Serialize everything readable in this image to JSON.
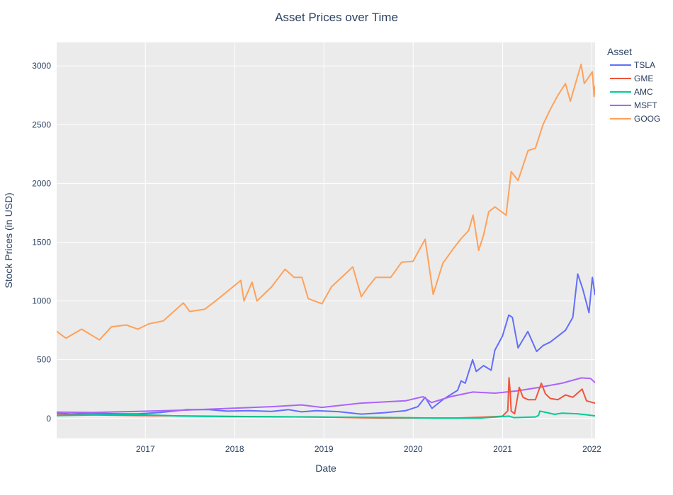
{
  "chart_data": {
    "type": "line",
    "title": "Asset Prices over Time",
    "xlabel": "Date",
    "ylabel": "Stock Prices (in USD)",
    "legend_title": "Asset",
    "legend_position": "right",
    "grid": true,
    "x_tick_labels": [
      "2017",
      "2018",
      "2019",
      "2020",
      "2021",
      "2022"
    ],
    "y_tick_labels": [
      "0",
      "500",
      "1000",
      "1500",
      "2000",
      "2500",
      "3000"
    ],
    "xlim": [
      "2016-01-04",
      "2022-01-14"
    ],
    "ylim": [
      -170,
      3200
    ],
    "colors": {
      "TSLA": "#636efa",
      "GME": "#ef553b",
      "AMC": "#00cc96",
      "MSFT": "#ab63fa",
      "GOOG": "#ffa15a",
      "plot_bg": "#ebebeb",
      "grid": "#ffffff"
    },
    "series": [
      {
        "name": "TSLA",
        "points": [
          [
            "2016-01-04",
            45
          ],
          [
            "2016-03-01",
            38
          ],
          [
            "2016-06-01",
            44
          ],
          [
            "2016-09-01",
            40
          ],
          [
            "2016-12-01",
            39
          ],
          [
            "2017-03-01",
            50
          ],
          [
            "2017-06-20",
            75
          ],
          [
            "2017-09-15",
            76
          ],
          [
            "2017-12-01",
            62
          ],
          [
            "2018-03-01",
            66
          ],
          [
            "2018-06-01",
            60
          ],
          [
            "2018-08-10",
            75
          ],
          [
            "2018-10-01",
            56
          ],
          [
            "2018-12-01",
            66
          ],
          [
            "2019-03-01",
            58
          ],
          [
            "2019-06-03",
            37
          ],
          [
            "2019-09-01",
            48
          ],
          [
            "2019-12-01",
            66
          ],
          [
            "2020-01-20",
            100
          ],
          [
            "2020-02-19",
            180
          ],
          [
            "2020-03-18",
            86
          ],
          [
            "2020-05-01",
            160
          ],
          [
            "2020-07-01",
            240
          ],
          [
            "2020-07-15",
            320
          ],
          [
            "2020-08-01",
            300
          ],
          [
            "2020-08-31",
            500
          ],
          [
            "2020-09-15",
            400
          ],
          [
            "2020-10-15",
            450
          ],
          [
            "2020-11-15",
            410
          ],
          [
            "2020-11-30",
            580
          ],
          [
            "2020-12-31",
            700
          ],
          [
            "2021-01-26",
            880
          ],
          [
            "2021-02-10",
            860
          ],
          [
            "2021-03-05",
            600
          ],
          [
            "2021-04-14",
            740
          ],
          [
            "2021-05-20",
            570
          ],
          [
            "2021-06-15",
            620
          ],
          [
            "2021-07-15",
            650
          ],
          [
            "2021-08-15",
            700
          ],
          [
            "2021-09-15",
            750
          ],
          [
            "2021-10-15",
            860
          ],
          [
            "2021-11-04",
            1230
          ],
          [
            "2021-11-25",
            1100
          ],
          [
            "2021-12-20",
            900
          ],
          [
            "2022-01-03",
            1200
          ],
          [
            "2022-01-14",
            1050
          ]
        ]
      },
      {
        "name": "GME",
        "points": [
          [
            "2016-01-04",
            29
          ],
          [
            "2016-06-01",
            30
          ],
          [
            "2016-12-01",
            25
          ],
          [
            "2017-06-01",
            22
          ],
          [
            "2017-12-01",
            18
          ],
          [
            "2018-06-01",
            14
          ],
          [
            "2018-12-01",
            13
          ],
          [
            "2019-06-01",
            6
          ],
          [
            "2019-09-01",
            4
          ],
          [
            "2020-04-01",
            4
          ],
          [
            "2020-07-01",
            4
          ],
          [
            "2020-10-01",
            10
          ],
          [
            "2020-12-31",
            19
          ],
          [
            "2021-01-22",
            65
          ],
          [
            "2021-01-27",
            347
          ],
          [
            "2021-02-01",
            225
          ],
          [
            "2021-02-05",
            63
          ],
          [
            "2021-02-19",
            40
          ],
          [
            "2021-02-25",
            110
          ],
          [
            "2021-03-10",
            265
          ],
          [
            "2021-03-25",
            180
          ],
          [
            "2021-04-15",
            160
          ],
          [
            "2021-05-15",
            160
          ],
          [
            "2021-06-08",
            300
          ],
          [
            "2021-06-25",
            210
          ],
          [
            "2021-07-15",
            170
          ],
          [
            "2021-08-15",
            160
          ],
          [
            "2021-09-15",
            200
          ],
          [
            "2021-10-15",
            180
          ],
          [
            "2021-11-22",
            250
          ],
          [
            "2021-12-10",
            150
          ],
          [
            "2022-01-14",
            130
          ]
        ]
      },
      {
        "name": "AMC",
        "points": [
          [
            "2016-01-04",
            24
          ],
          [
            "2016-06-01",
            30
          ],
          [
            "2016-12-01",
            33
          ],
          [
            "2017-06-01",
            20
          ],
          [
            "2017-12-01",
            15
          ],
          [
            "2018-06-01",
            15
          ],
          [
            "2018-12-01",
            12
          ],
          [
            "2019-06-01",
            10
          ],
          [
            "2019-12-01",
            7
          ],
          [
            "2020-04-01",
            3
          ],
          [
            "2020-10-01",
            3
          ],
          [
            "2021-01-27",
            20
          ],
          [
            "2021-02-15",
            7
          ],
          [
            "2021-05-15",
            13
          ],
          [
            "2021-05-28",
            26
          ],
          [
            "2021-06-02",
            62
          ],
          [
            "2021-06-20",
            55
          ],
          [
            "2021-08-01",
            35
          ],
          [
            "2021-09-01",
            45
          ],
          [
            "2021-11-01",
            40
          ],
          [
            "2021-12-15",
            30
          ],
          [
            "2022-01-14",
            22
          ]
        ]
      },
      {
        "name": "MSFT",
        "points": [
          [
            "2016-01-04",
            54
          ],
          [
            "2016-06-01",
            51
          ],
          [
            "2016-12-01",
            60
          ],
          [
            "2017-06-01",
            70
          ],
          [
            "2017-12-01",
            85
          ],
          [
            "2018-06-01",
            100
          ],
          [
            "2018-10-01",
            115
          ],
          [
            "2018-12-24",
            94
          ],
          [
            "2019-06-01",
            130
          ],
          [
            "2019-12-01",
            150
          ],
          [
            "2020-02-10",
            185
          ],
          [
            "2020-03-16",
            135
          ],
          [
            "2020-06-01",
            185
          ],
          [
            "2020-09-01",
            225
          ],
          [
            "2020-12-01",
            215
          ],
          [
            "2021-03-01",
            235
          ],
          [
            "2021-06-01",
            265
          ],
          [
            "2021-09-01",
            300
          ],
          [
            "2021-11-19",
            345
          ],
          [
            "2021-12-27",
            340
          ],
          [
            "2022-01-14",
            305
          ]
        ]
      },
      {
        "name": "GOOG",
        "points": [
          [
            "2016-01-04",
            741
          ],
          [
            "2016-02-11",
            683
          ],
          [
            "2016-04-15",
            760
          ],
          [
            "2016-06-27",
            668
          ],
          [
            "2016-08-15",
            780
          ],
          [
            "2016-10-15",
            795
          ],
          [
            "2016-12-01",
            760
          ],
          [
            "2017-01-15",
            805
          ],
          [
            "2017-03-15",
            830
          ],
          [
            "2017-06-05",
            983
          ],
          [
            "2017-07-01",
            910
          ],
          [
            "2017-09-01",
            930
          ],
          [
            "2017-10-27",
            1020
          ],
          [
            "2018-01-26",
            1175
          ],
          [
            "2018-02-08",
            1000
          ],
          [
            "2018-03-13",
            1160
          ],
          [
            "2018-04-02",
            1000
          ],
          [
            "2018-06-01",
            1120
          ],
          [
            "2018-07-26",
            1270
          ],
          [
            "2018-09-01",
            1200
          ],
          [
            "2018-10-03",
            1200
          ],
          [
            "2018-10-29",
            1020
          ],
          [
            "2018-12-24",
            976
          ],
          [
            "2019-02-01",
            1120
          ],
          [
            "2019-04-29",
            1290
          ],
          [
            "2019-06-03",
            1036
          ],
          [
            "2019-07-01",
            1120
          ],
          [
            "2019-08-01",
            1200
          ],
          [
            "2019-10-01",
            1200
          ],
          [
            "2019-11-15",
            1330
          ],
          [
            "2019-12-31",
            1337
          ],
          [
            "2020-02-19",
            1525
          ],
          [
            "2020-03-23",
            1056
          ],
          [
            "2020-05-01",
            1320
          ],
          [
            "2020-06-15",
            1450
          ],
          [
            "2020-07-15",
            1530
          ],
          [
            "2020-08-15",
            1600
          ],
          [
            "2020-09-02",
            1730
          ],
          [
            "2020-09-25",
            1430
          ],
          [
            "2020-10-15",
            1560
          ],
          [
            "2020-11-05",
            1760
          ],
          [
            "2020-12-01",
            1800
          ],
          [
            "2021-01-15",
            1730
          ],
          [
            "2021-02-05",
            2100
          ],
          [
            "2021-03-05",
            2025
          ],
          [
            "2021-04-15",
            2280
          ],
          [
            "2021-05-15",
            2300
          ],
          [
            "2021-06-15",
            2500
          ],
          [
            "2021-07-15",
            2630
          ],
          [
            "2021-08-15",
            2750
          ],
          [
            "2021-09-15",
            2850
          ],
          [
            "2021-10-05",
            2700
          ],
          [
            "2021-11-18",
            3014
          ],
          [
            "2021-12-01",
            2850
          ],
          [
            "2022-01-03",
            2950
          ],
          [
            "2022-01-10",
            2740
          ],
          [
            "2022-01-14",
            2832
          ]
        ]
      }
    ]
  }
}
